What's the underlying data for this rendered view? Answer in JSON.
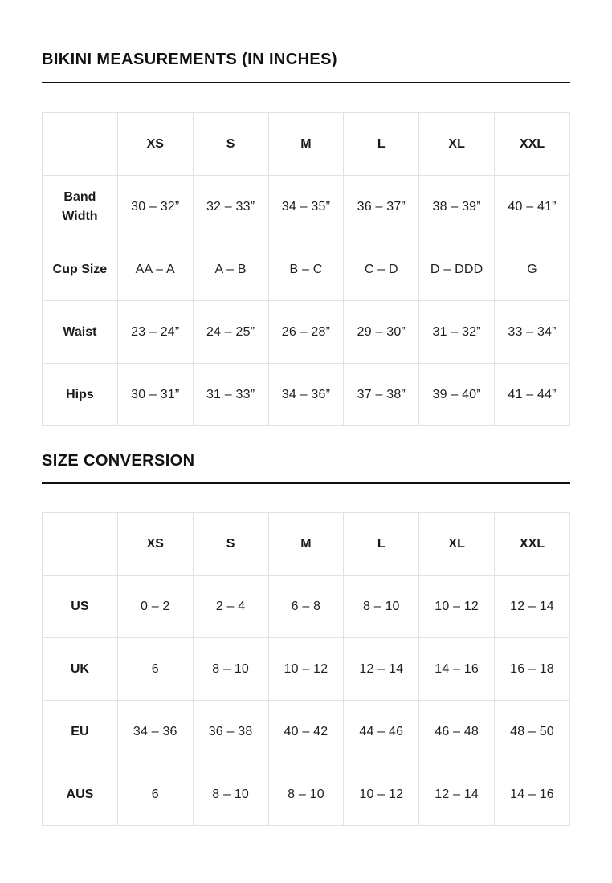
{
  "page": {
    "background": "#ffffff",
    "text_color": "#1a1a1a",
    "rule_color": "#111111",
    "table_border_color": "#e2e2e2"
  },
  "sections": [
    {
      "title": "BIKINI MEASUREMENTS (IN INCHES)",
      "table": {
        "columns": [
          "",
          "XS",
          "S",
          "M",
          "L",
          "XL",
          "XXL"
        ],
        "rows": [
          {
            "label": "Band Width",
            "values": [
              "30 – 32”",
              "32 – 33”",
              "34 – 35”",
              "36 – 37”",
              "38 – 39”",
              "40 – 41”"
            ]
          },
          {
            "label": "Cup Size",
            "values": [
              "AA – A",
              "A – B",
              "B – C",
              "C – D",
              "D – DDD",
              "G"
            ]
          },
          {
            "label": "Waist",
            "values": [
              "23 – 24”",
              "24 – 25”",
              "26 – 28”",
              "29 – 30”",
              "31 – 32”",
              "33 – 34”"
            ]
          },
          {
            "label": "Hips",
            "values": [
              "30 – 31”",
              "31 – 33”",
              "34 – 36”",
              "37 – 38”",
              "39 – 40”",
              "41 – 44”"
            ]
          }
        ]
      }
    },
    {
      "title": "SIZE CONVERSION",
      "table": {
        "columns": [
          "",
          "XS",
          "S",
          "M",
          "L",
          "XL",
          "XXL"
        ],
        "rows": [
          {
            "label": "US",
            "values": [
              "0 – 2",
              "2 – 4",
              "6 – 8",
              "8 – 10",
              "10 – 12",
              "12 – 14"
            ]
          },
          {
            "label": "UK",
            "values": [
              "6",
              "8 – 10",
              "10 – 12",
              "12 – 14",
              "14 – 16",
              "16 – 18"
            ]
          },
          {
            "label": "EU",
            "values": [
              "34 – 36",
              "36 – 38",
              "40 – 42",
              "44 – 46",
              "46 – 48",
              "48 – 50"
            ]
          },
          {
            "label": "AUS",
            "values": [
              "6",
              "8 – 10",
              "8 – 10",
              "10 – 12",
              "12 – 14",
              "14 – 16"
            ]
          }
        ]
      }
    }
  ]
}
